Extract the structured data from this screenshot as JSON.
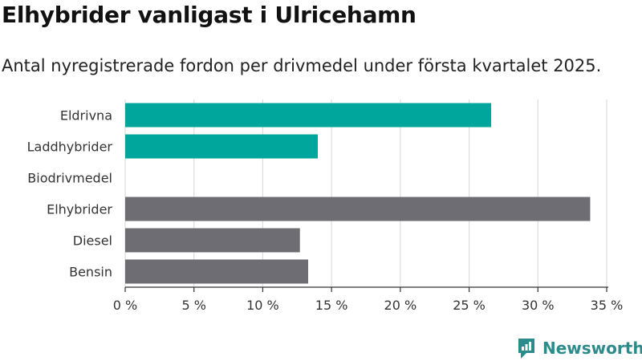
{
  "header": {
    "title": "Elhybrider vanligast i Ulricehamn",
    "subtitle": "Antal nyregistrerade fordon per drivmedel under första kvartalet 2025."
  },
  "brand": {
    "name": "Newsworthy",
    "color": "#2e8b8b"
  },
  "chart_data": {
    "type": "bar",
    "orientation": "horizontal",
    "categories": [
      "Eldrivna",
      "Laddhybrider",
      "Biodrivmedel",
      "Elhybrider",
      "Diesel",
      "Bensin"
    ],
    "values": [
      26.6,
      14.0,
      0,
      33.8,
      12.7,
      13.3
    ],
    "colors": [
      "#00a59b",
      "#00a59b",
      "#00a59b",
      "#6e6d73",
      "#6e6d73",
      "#6e6d73"
    ],
    "xlim": [
      0,
      35
    ],
    "xticks": [
      0,
      5,
      10,
      15,
      20,
      25,
      30,
      35
    ],
    "xtick_labels": [
      "0 %",
      "5 %",
      "10 %",
      "15 %",
      "20 %",
      "25 %",
      "30 %",
      "35 %"
    ],
    "grid": true,
    "xlabel": "",
    "ylabel": ""
  }
}
